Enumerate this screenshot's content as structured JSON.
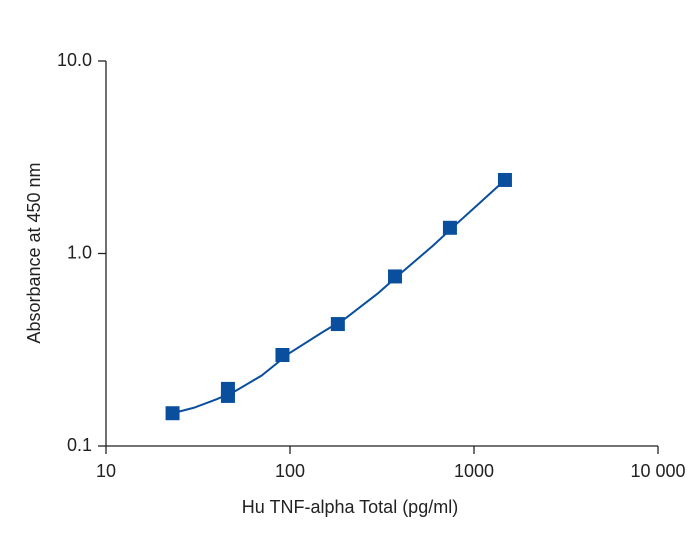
{
  "chart_data": {
    "type": "scatter",
    "x_label": "Hu TNF-alpha Total (pg/ml)",
    "y_label": "Absorbance at 450 nm",
    "xscale": "log",
    "yscale": "log",
    "xlim": [
      10,
      10000
    ],
    "ylim": [
      0.1,
      10
    ],
    "xticks": [
      10,
      100,
      1000,
      {
        "value": 10000,
        "label": "10 000"
      }
    ],
    "yticks": [
      0.1,
      {
        "value": 1,
        "label": "1.0"
      },
      {
        "value": 10,
        "label": "10.0"
      }
    ],
    "series": [
      {
        "style": "markers",
        "marker": "square",
        "color": "#0a4f9e",
        "x": [
          23,
          46,
          46,
          91,
          182,
          372,
          740,
          1473
        ],
        "values": [
          0.148,
          0.198,
          0.182,
          0.297,
          0.43,
          0.76,
          1.36,
          2.41
        ]
      },
      {
        "style": "line",
        "color": "#0a4f9e",
        "x": [
          23,
          30,
          40,
          50,
          70,
          100,
          150,
          200,
          300,
          400,
          600,
          800,
          1000,
          1473
        ],
        "values": [
          0.148,
          0.158,
          0.175,
          0.192,
          0.232,
          0.305,
          0.39,
          0.46,
          0.62,
          0.79,
          1.1,
          1.42,
          1.72,
          2.41
        ]
      }
    ]
  }
}
